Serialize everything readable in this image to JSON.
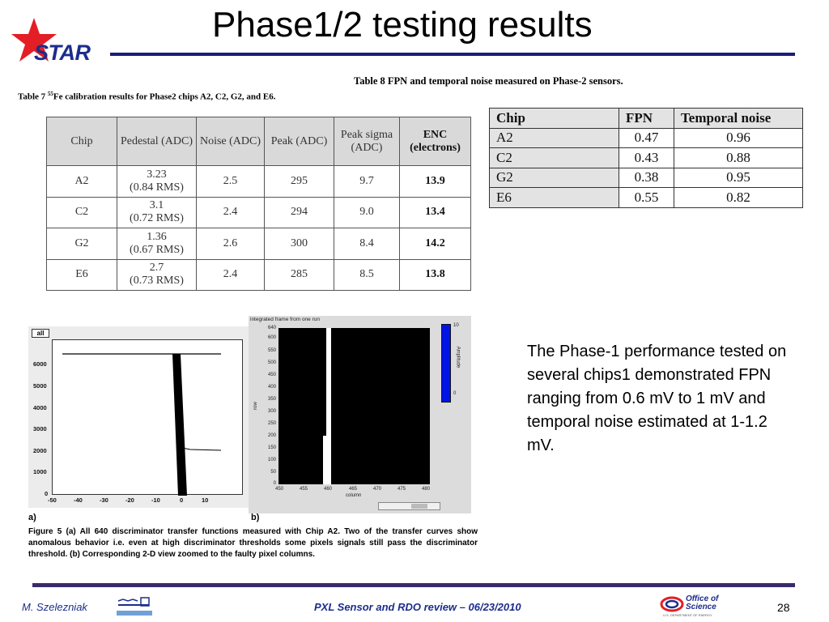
{
  "slide": {
    "title": "Phase1/2 testing results",
    "logo_text": "STAR"
  },
  "table7": {
    "caption_prefix": "Table 7",
    "caption_sup": "55",
    "caption_rest": "Fe calibration results for Phase2 chips A2, C2, G2, and E6.",
    "headers": [
      "Chip",
      "Pedestal (ADC)",
      "Noise (ADC)",
      "Peak (ADC)",
      "Peak sigma (ADC)",
      "ENC (electrons)"
    ],
    "rows": [
      {
        "chip": "A2",
        "pedestal": "3.23",
        "pedestal_rms": "(0.84 RMS)",
        "noise": "2.5",
        "peak": "295",
        "sigma": "9.7",
        "enc": "13.9"
      },
      {
        "chip": "C2",
        "pedestal": "3.1",
        "pedestal_rms": "(0.72 RMS)",
        "noise": "2.4",
        "peak": "294",
        "sigma": "9.0",
        "enc": "13.4"
      },
      {
        "chip": "G2",
        "pedestal": "1.36",
        "pedestal_rms": "(0.67 RMS)",
        "noise": "2.6",
        "peak": "300",
        "sigma": "8.4",
        "enc": "14.2"
      },
      {
        "chip": "E6",
        "pedestal": "2.7",
        "pedestal_rms": "(0.73 RMS)",
        "noise": "2.4",
        "peak": "285",
        "sigma": "8.5",
        "enc": "13.8"
      }
    ]
  },
  "table8": {
    "caption": "Table 8 FPN and temporal noise measured on Phase-2 sensors.",
    "headers": [
      "Chip",
      "FPN",
      "Temporal noise"
    ],
    "rows": [
      {
        "chip": "A2",
        "fpn": "0.47",
        "tn": "0.96"
      },
      {
        "chip": "C2",
        "fpn": "0.43",
        "tn": "0.88"
      },
      {
        "chip": "G2",
        "fpn": "0.38",
        "tn": "0.95"
      },
      {
        "chip": "E6",
        "fpn": "0.55",
        "tn": "0.82"
      }
    ]
  },
  "plot_a": {
    "box_label": "all",
    "y_ticks": [
      "6000",
      "5000",
      "4000",
      "3000",
      "2000",
      "1000",
      "0"
    ],
    "x_ticks": [
      "-50",
      "-40",
      "-30",
      "-20",
      "-10",
      "0",
      "10"
    ]
  },
  "plot_b": {
    "title": "integrated frame from one run",
    "y_ticks": [
      "640",
      "600",
      "550",
      "500",
      "450",
      "400",
      "350",
      "300",
      "250",
      "200",
      "150",
      "100",
      "50",
      "0"
    ],
    "x_ticks": [
      "450",
      "455",
      "460",
      "465",
      "470",
      "475",
      "480"
    ],
    "x_label": "column",
    "y_label": "row",
    "colorbar_max": "10",
    "colorbar_min": "0",
    "colorbar_label": "Amplitude"
  },
  "figure": {
    "label_a": "a)",
    "label_b": "b)",
    "caption": "Figure 5 (a) All 640 discriminator transfer functions measured with Chip A2. Two of the transfer curves show anomalous behavior i.e. even at high discriminator thresholds some pixels signals still pass the discriminator threshold.  (b) Corresponding 2-D view zoomed to the faulty pixel columns."
  },
  "summary": "The Phase-1 performance tested on several chips1 demonstrated FPN ranging from 0.6 mV to 1 mV and temporal noise estimated at 1-1.2 mV.",
  "footer": {
    "author": "M. Szelezniak",
    "center": "PXL Sensor and RDO review – 06/23/2010",
    "page": "28",
    "doe_line1": "Office of",
    "doe_line2": "Science",
    "doe_line3": "U.S. DEPARTMENT OF ENERGY"
  },
  "colors": {
    "title_rule": "#1a1a7e",
    "star_red": "#e31e24",
    "brand_blue": "#1c2d8c",
    "colorbar_blue": "#0014e6"
  }
}
